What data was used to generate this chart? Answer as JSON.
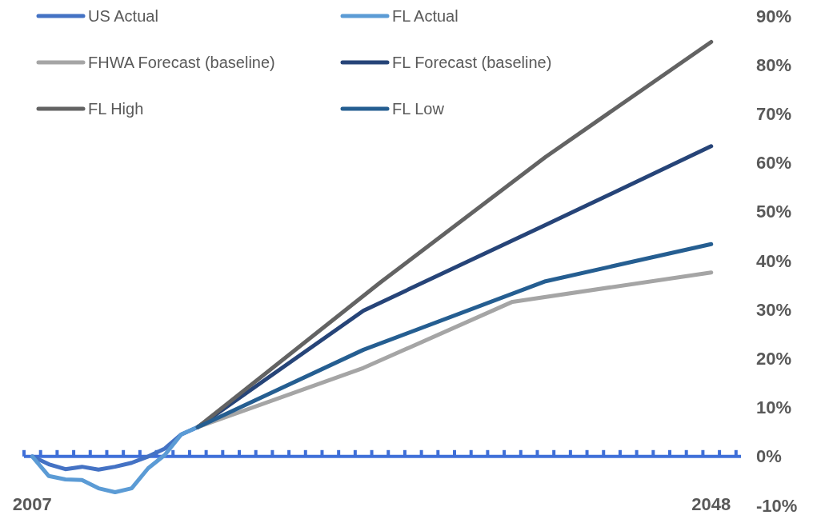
{
  "chart_data": {
    "type": "line",
    "legend": "top left",
    "line_style": "solid",
    "marker": "none",
    "xlim": [
      2006.5,
      2049.8
    ],
    "xticks": [
      {
        "value": 2006.5,
        "label": null
      },
      {
        "value": 2007,
        "label": "2007"
      },
      {
        "value": 2007.5,
        "label": null
      },
      {
        "value": 2008.5,
        "label": null
      },
      {
        "value": 2009.5,
        "label": null
      },
      {
        "value": 2010.5,
        "label": null
      },
      {
        "value": 2011.5,
        "label": null
      },
      {
        "value": 2012.5,
        "label": null
      },
      {
        "value": 2013.5,
        "label": null
      },
      {
        "value": 2014.5,
        "label": null
      },
      {
        "value": 2015.5,
        "label": null
      },
      {
        "value": 2016.5,
        "label": null
      },
      {
        "value": 2017.5,
        "label": null
      },
      {
        "value": 2018.5,
        "label": null
      },
      {
        "value": 2019.5,
        "label": null
      },
      {
        "value": 2020.5,
        "label": null
      },
      {
        "value": 2021.5,
        "label": null
      },
      {
        "value": 2022.5,
        "label": null
      },
      {
        "value": 2023.5,
        "label": null
      },
      {
        "value": 2024.5,
        "label": null
      },
      {
        "value": 2025.5,
        "label": null
      },
      {
        "value": 2026.5,
        "label": null
      },
      {
        "value": 2027.5,
        "label": null
      },
      {
        "value": 2028.5,
        "label": null
      },
      {
        "value": 2029.5,
        "label": null
      },
      {
        "value": 2030.5,
        "label": null
      },
      {
        "value": 2031.5,
        "label": null
      },
      {
        "value": 2032.5,
        "label": null
      },
      {
        "value": 2033.5,
        "label": null
      },
      {
        "value": 2034.5,
        "label": null
      },
      {
        "value": 2035.5,
        "label": null
      },
      {
        "value": 2036.5,
        "label": null
      },
      {
        "value": 2037.5,
        "label": null
      },
      {
        "value": 2038.5,
        "label": null
      },
      {
        "value": 2039.5,
        "label": null
      },
      {
        "value": 2040.5,
        "label": null
      },
      {
        "value": 2041.5,
        "label": null
      },
      {
        "value": 2042.5,
        "label": null
      },
      {
        "value": 2043.5,
        "label": null
      },
      {
        "value": 2044.5,
        "label": null
      },
      {
        "value": 2045.5,
        "label": null
      },
      {
        "value": 2046.5,
        "label": null
      },
      {
        "value": 2047.5,
        "label": null
      },
      {
        "value": 2048,
        "label": "2048"
      },
      {
        "value": 2048.5,
        "label": null
      },
      {
        "value": 2049.5,
        "label": null
      }
    ],
    "ylim": [
      -10,
      90
    ],
    "yticks": [
      {
        "value": -10,
        "label": "-10%"
      },
      {
        "value": 0,
        "label": "0%"
      },
      {
        "value": 10,
        "label": "10%"
      },
      {
        "value": 20,
        "label": "20%"
      },
      {
        "value": 30,
        "label": "30%"
      },
      {
        "value": 40,
        "label": "40%"
      },
      {
        "value": 50,
        "label": "50%"
      },
      {
        "value": 60,
        "label": "60%"
      },
      {
        "value": 70,
        "label": "70%"
      },
      {
        "value": 80,
        "label": "80%"
      },
      {
        "value": 90,
        "label": "90%"
      }
    ],
    "series": [
      {
        "name": "US Actual",
        "color": "#4472c4",
        "x": [
          2007,
          2008,
          2009,
          2010,
          2011,
          2012,
          2013,
          2014,
          2015,
          2016,
          2017
        ],
        "values": [
          0,
          -1.6,
          -2.6,
          -2.1,
          -2.7,
          -2.1,
          -1.3,
          0,
          1.6,
          4.5,
          6
        ]
      },
      {
        "name": "FL Actual",
        "color": "#5b9bd5",
        "x": [
          2007,
          2008,
          2009,
          2010,
          2011,
          2012,
          2013,
          2014,
          2015,
          2016,
          2017
        ],
        "values": [
          0,
          -4,
          -4.7,
          -4.8,
          -6.5,
          -7.3,
          -6.5,
          -2.4,
          0.3,
          4.5,
          6
        ]
      },
      {
        "name": "FHWA Forecast (baseline)",
        "color": "#a5a5a5",
        "x": [
          2017,
          2027,
          2036,
          2048
        ],
        "values": [
          6,
          18.1,
          31.6,
          37.6
        ]
      },
      {
        "name": "FL Forecast (baseline)",
        "color": "#264478",
        "x": [
          2017,
          2027,
          2038,
          2048
        ],
        "values": [
          6,
          29.8,
          47.3,
          63.4
        ]
      },
      {
        "name": "FL High",
        "color": "#636363",
        "x": [
          2017,
          2028,
          2038,
          2048
        ],
        "values": [
          6,
          35.5,
          61.2,
          84.7
        ]
      },
      {
        "name": "FL Low",
        "color": "#255e91",
        "x": [
          2017,
          2027,
          2038,
          2048
        ],
        "values": [
          6,
          21.8,
          35.8,
          43.4
        ]
      }
    ]
  }
}
